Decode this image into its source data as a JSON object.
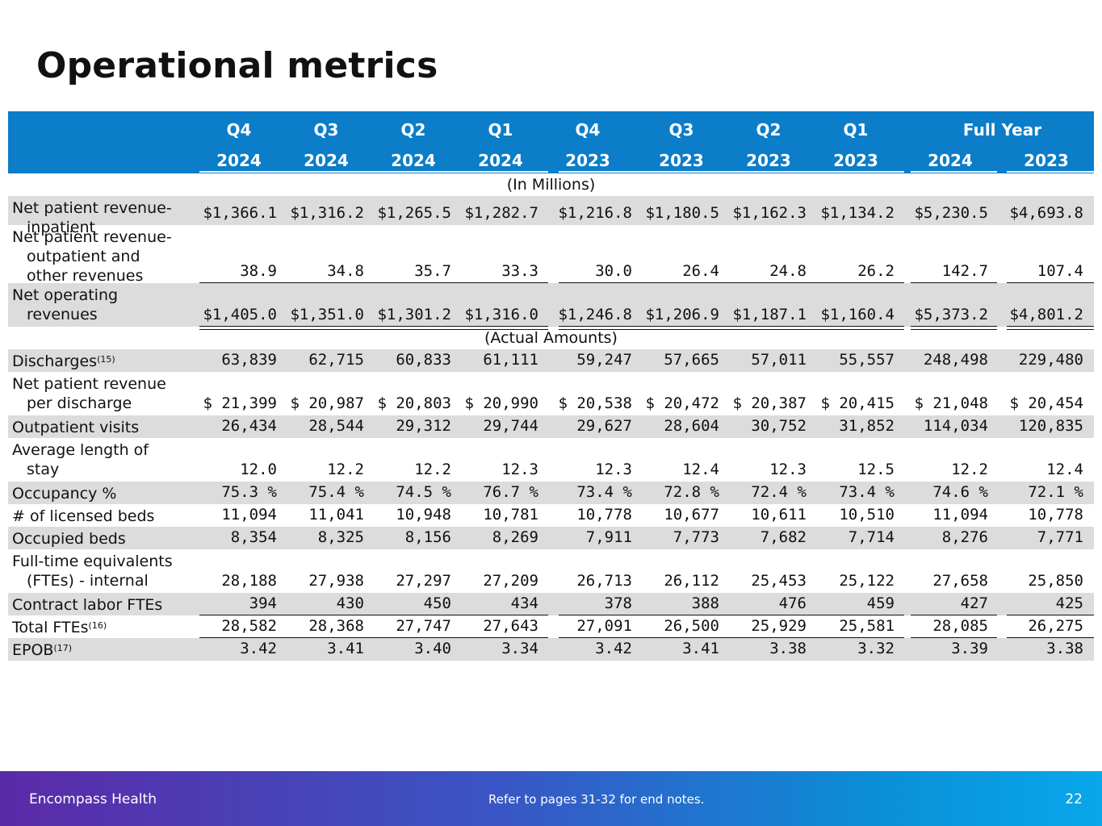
{
  "title": "Operational metrics",
  "header": {
    "quarters": [
      "Q4",
      "Q3",
      "Q2",
      "Q1",
      "Q4",
      "Q3",
      "Q2",
      "Q1"
    ],
    "years": [
      "2024",
      "2024",
      "2024",
      "2024",
      "2023",
      "2023",
      "2023",
      "2023"
    ],
    "full_year_label": "Full Year",
    "fy_years": [
      "2024",
      "2023"
    ]
  },
  "sections": {
    "millions": "(In Millions)",
    "actual": "(Actual Amounts)"
  },
  "rows_millions": [
    {
      "label_lines": [
        "Net patient revenue-",
        "inpatient"
      ],
      "values": [
        "$1,366.1",
        "$1,316.2",
        "$1,265.5",
        "$1,282.7",
        "$1,216.8",
        "$1,180.5",
        "$1,162.3",
        "$1,134.2",
        "$5,230.5",
        "$4,693.8"
      ]
    },
    {
      "label_lines": [
        "Net patient revenue-",
        "outpatient and",
        "other revenues"
      ],
      "values": [
        "38.9",
        "34.8",
        "35.7",
        "33.3",
        "30.0",
        "26.4",
        "24.8",
        "26.2",
        "142.7",
        "107.4"
      ]
    },
    {
      "label_lines": [
        "Net operating",
        "revenues"
      ],
      "values": [
        "$1,405.0",
        "$1,351.0",
        "$1,301.2",
        "$1,316.0",
        "$1,246.8",
        "$1,206.9",
        "$1,187.1",
        "$1,160.4",
        "$5,373.2",
        "$4,801.2"
      ]
    }
  ],
  "rows_actual": [
    {
      "label_lines": [
        "Discharges"
      ],
      "sup": "(15)",
      "values": [
        "63,839",
        "62,715",
        "60,833",
        "61,111",
        "59,247",
        "57,665",
        "57,011",
        "55,557",
        "248,498",
        "229,480"
      ]
    },
    {
      "label_lines": [
        "Net patient revenue",
        "per discharge"
      ],
      "values": [
        "$ 21,399",
        "$ 20,987",
        "$ 20,803",
        "$ 20,990",
        "$ 20,538",
        "$ 20,472",
        "$ 20,387",
        "$ 20,415",
        "$ 21,048",
        "$ 20,454"
      ]
    },
    {
      "label_lines": [
        "Outpatient visits"
      ],
      "values": [
        "26,434",
        "28,544",
        "29,312",
        "29,744",
        "29,627",
        "28,604",
        "30,752",
        "31,852",
        "114,034",
        "120,835"
      ]
    },
    {
      "label_lines": [
        "Average length of",
        "stay"
      ],
      "values": [
        "12.0",
        "12.2",
        "12.2",
        "12.3",
        "12.3",
        "12.4",
        "12.3",
        "12.5",
        "12.2",
        "12.4"
      ]
    },
    {
      "label_lines": [
        "Occupancy %"
      ],
      "values": [
        "75.3 %",
        "75.4 %",
        "74.5 %",
        "76.7 %",
        "73.4 %",
        "72.8 %",
        "72.4 %",
        "73.4 %",
        "74.6 %",
        "72.1 %"
      ]
    },
    {
      "label_lines": [
        "# of licensed beds"
      ],
      "values": [
        "11,094",
        "11,041",
        "10,948",
        "10,781",
        "10,778",
        "10,677",
        "10,611",
        "10,510",
        "11,094",
        "10,778"
      ]
    },
    {
      "label_lines": [
        "Occupied beds"
      ],
      "values": [
        "8,354",
        "8,325",
        "8,156",
        "8,269",
        "7,911",
        "7,773",
        "7,682",
        "7,714",
        "8,276",
        "7,771"
      ]
    },
    {
      "label_lines": [
        "Full-time equivalents",
        "(FTEs) - internal"
      ],
      "values": [
        "28,188",
        "27,938",
        "27,297",
        "27,209",
        "26,713",
        "26,112",
        "25,453",
        "25,122",
        "27,658",
        "25,850"
      ]
    },
    {
      "label_lines": [
        "Contract labor FTEs"
      ],
      "values": [
        "394",
        "430",
        "450",
        "434",
        "378",
        "388",
        "476",
        "459",
        "427",
        "425"
      ]
    },
    {
      "label_lines": [
        "Total FTEs"
      ],
      "sup": "(16)",
      "values": [
        "28,582",
        "28,368",
        "27,747",
        "27,643",
        "27,091",
        "26,500",
        "25,929",
        "25,581",
        "28,085",
        "26,275"
      ]
    },
    {
      "label_lines": [
        "EPOB"
      ],
      "sup": "(17)",
      "values": [
        "3.42",
        "3.41",
        "3.40",
        "3.34",
        "3.42",
        "3.41",
        "3.38",
        "3.32",
        "3.39",
        "3.38"
      ]
    }
  ],
  "footer": {
    "company": "Encompass Health",
    "note": "Refer to pages 31-32 for end notes.",
    "page": "22"
  }
}
